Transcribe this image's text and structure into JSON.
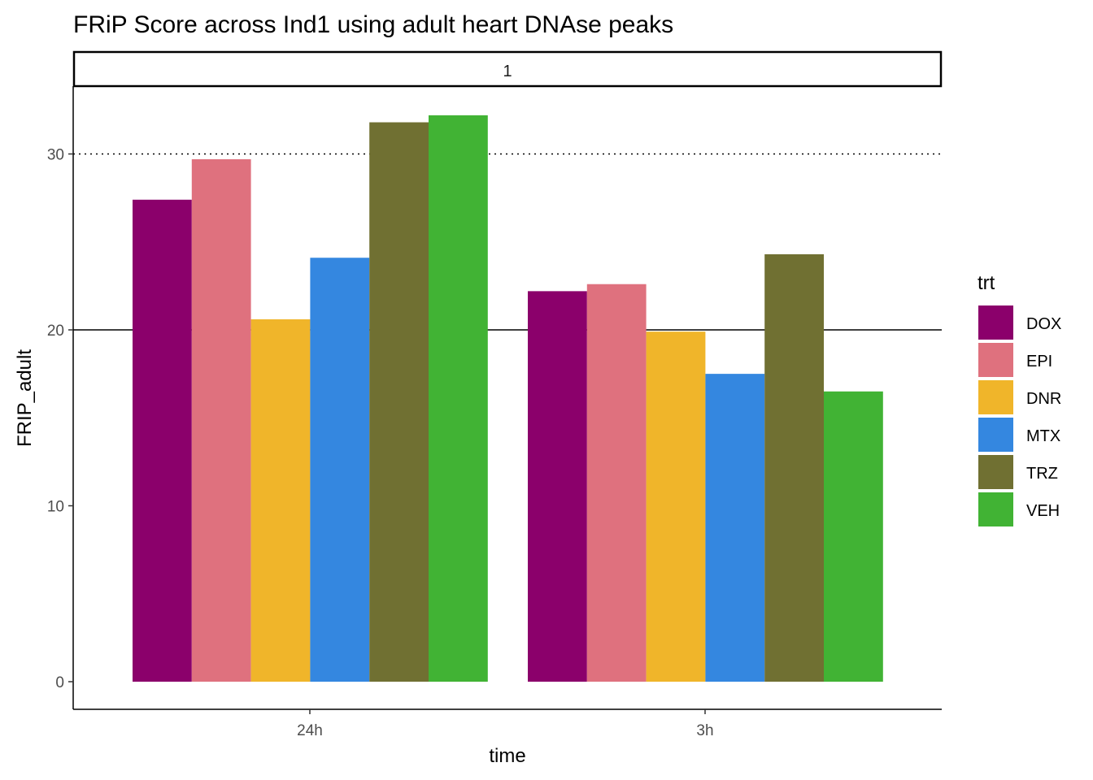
{
  "chart_data": {
    "type": "bar",
    "title": "FRiP Score across Ind1 using adult heart DNAse peaks",
    "facet_label": "1",
    "xlabel": "time",
    "ylabel": "FRIP_adult",
    "categories": [
      "24h",
      "3h"
    ],
    "ylim": [
      -1.5,
      33.9
    ],
    "yticks": [
      0,
      10,
      20,
      30
    ],
    "ytick_labels": [
      "0",
      "10",
      "20",
      "30"
    ],
    "grid": false,
    "reference_lines": [
      {
        "y": 30,
        "style": "dotted"
      },
      {
        "y": 20,
        "style": "solid"
      }
    ],
    "legend": {
      "title": "trt",
      "position": "right"
    },
    "series": [
      {
        "name": "DOX",
        "color": "#8B006B",
        "values": [
          27.4,
          22.2
        ]
      },
      {
        "name": "EPI",
        "color": "#DF717E",
        "values": [
          29.7,
          22.6
        ]
      },
      {
        "name": "DNR",
        "color": "#F0B52A",
        "values": [
          20.6,
          19.9
        ]
      },
      {
        "name": "MTX",
        "color": "#3487E0",
        "values": [
          24.1,
          17.5
        ]
      },
      {
        "name": "TRZ",
        "color": "#707032",
        "values": [
          31.8,
          24.3
        ]
      },
      {
        "name": "VEH",
        "color": "#41B334",
        "values": [
          32.2,
          16.5
        ]
      }
    ]
  }
}
